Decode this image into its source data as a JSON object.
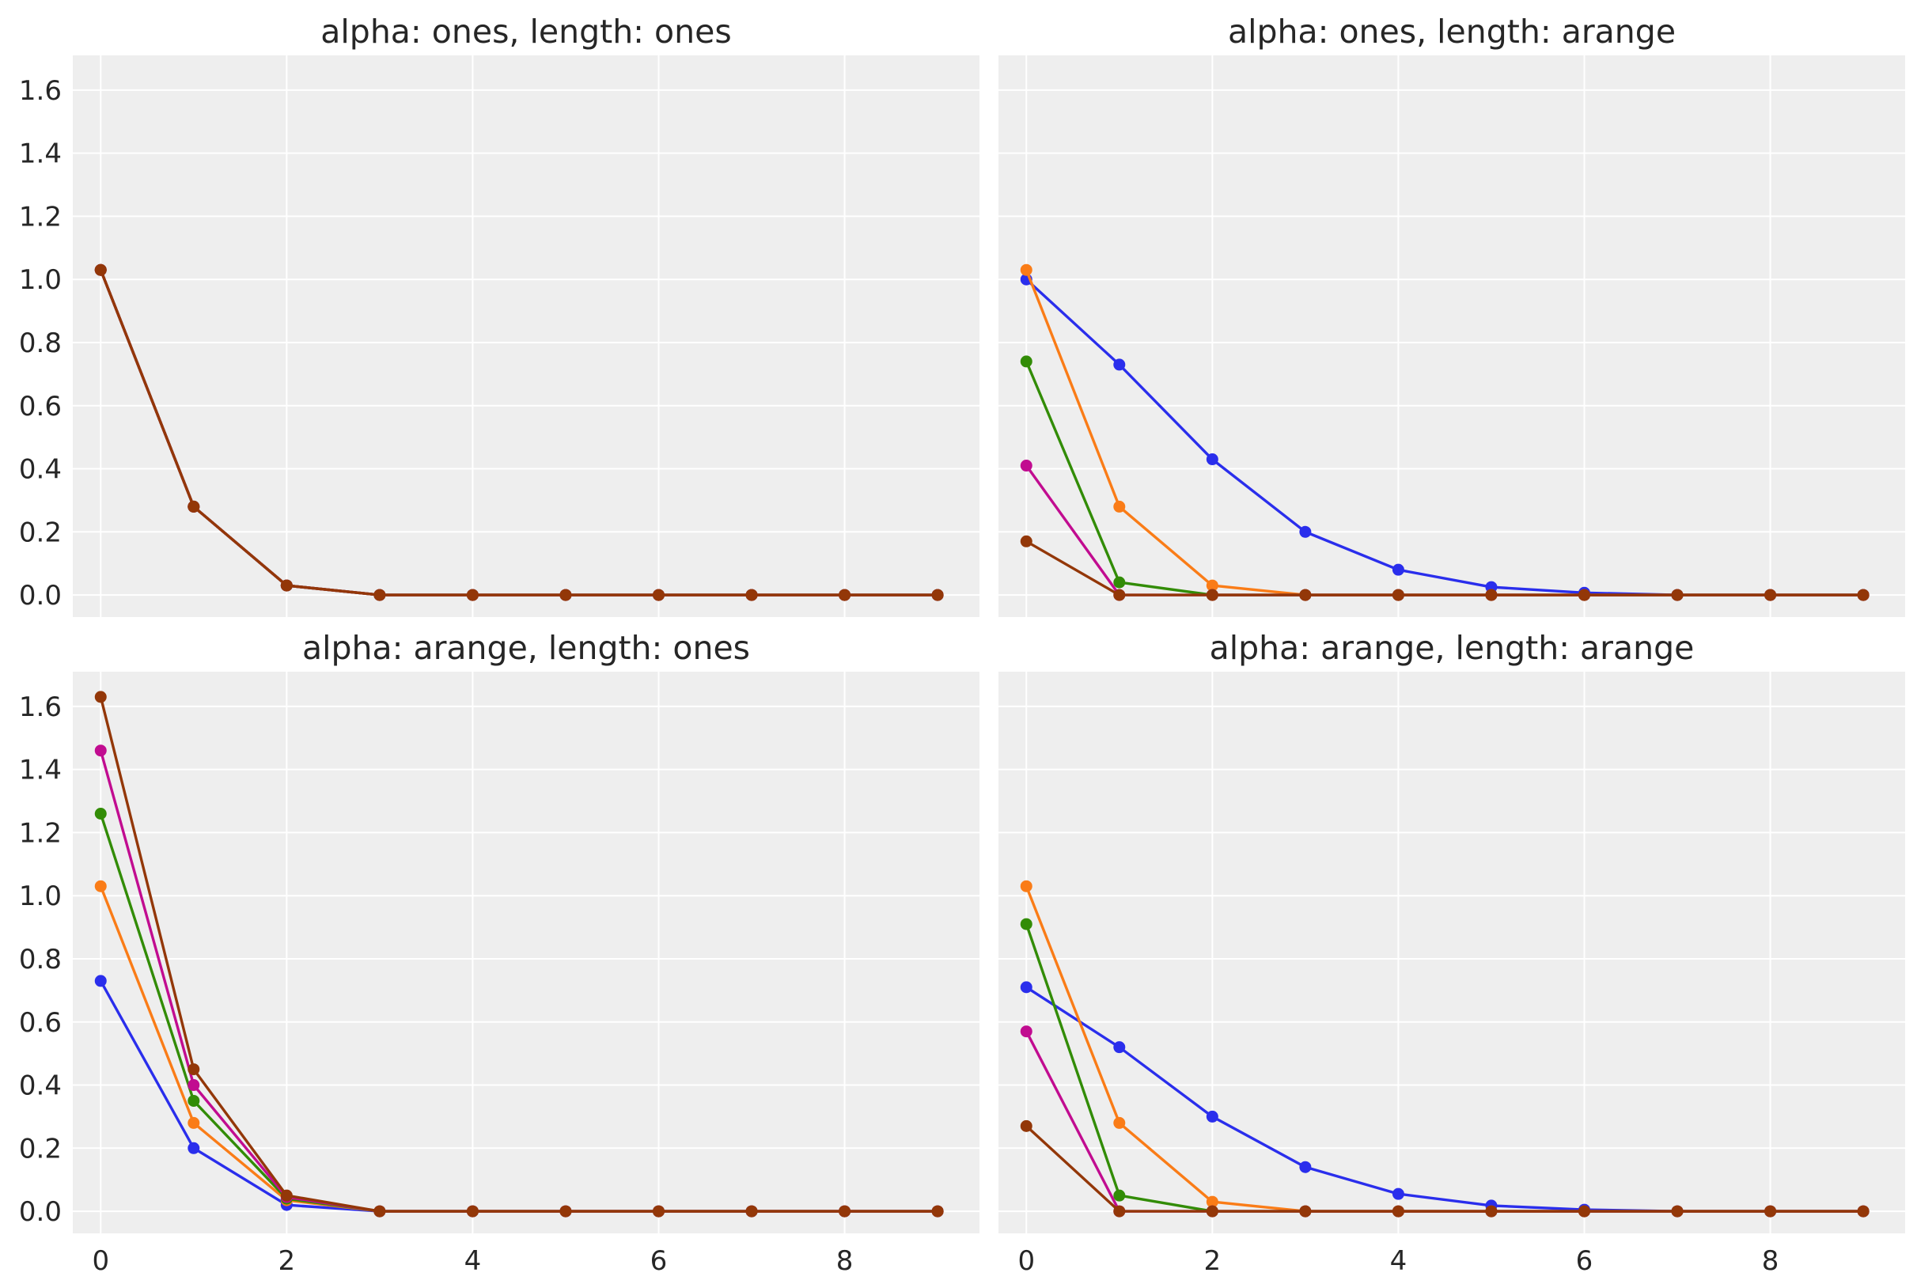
{
  "colors": {
    "background": "#eeeeee",
    "grid": "#ffffff",
    "text": "#262626",
    "series": [
      "#2a2eec",
      "#fa7c17",
      "#328c06",
      "#c10c90",
      "#933708"
    ]
  },
  "chart_data": [
    {
      "type": "line",
      "title": "alpha: ones, length: ones",
      "xlabel": "",
      "ylabel": "",
      "x": [
        0,
        1,
        2,
        3,
        4,
        5,
        6,
        7,
        8,
        9
      ],
      "xlim": [
        -0.3,
        9.45
      ],
      "ylim": [
        -0.07,
        1.71
      ],
      "x_ticks": [
        "0",
        "2",
        "4",
        "6",
        "8"
      ],
      "y_ticks": [
        "0.0",
        "0.2",
        "0.4",
        "0.6",
        "0.8",
        "1.0",
        "1.2",
        "1.4",
        "1.6"
      ],
      "grid": true,
      "marker": "circle",
      "series": [
        {
          "values": [
            1.03,
            0.28,
            0.03,
            0.0,
            0.0,
            0.0,
            0.0,
            0.0,
            0.0,
            0.0
          ]
        },
        {
          "values": [
            1.03,
            0.28,
            0.03,
            0.0,
            0.0,
            0.0,
            0.0,
            0.0,
            0.0,
            0.0
          ]
        },
        {
          "values": [
            1.03,
            0.28,
            0.03,
            0.0,
            0.0,
            0.0,
            0.0,
            0.0,
            0.0,
            0.0
          ]
        },
        {
          "values": [
            1.03,
            0.28,
            0.03,
            0.0,
            0.0,
            0.0,
            0.0,
            0.0,
            0.0,
            0.0
          ]
        },
        {
          "values": [
            1.03,
            0.28,
            0.03,
            0.0,
            0.0,
            0.0,
            0.0,
            0.0,
            0.0,
            0.0
          ]
        }
      ]
    },
    {
      "type": "line",
      "title": "alpha: ones, length: arange",
      "xlabel": "",
      "ylabel": "",
      "x": [
        0,
        1,
        2,
        3,
        4,
        5,
        6,
        7,
        8,
        9
      ],
      "xlim": [
        -0.3,
        9.45
      ],
      "ylim": [
        -0.07,
        1.71
      ],
      "x_ticks": [
        "0",
        "2",
        "4",
        "6",
        "8"
      ],
      "y_ticks": [
        "0.0",
        "0.2",
        "0.4",
        "0.6",
        "0.8",
        "1.0",
        "1.2",
        "1.4",
        "1.6"
      ],
      "grid": true,
      "marker": "circle",
      "series": [
        {
          "values": [
            1.0,
            0.73,
            0.43,
            0.2,
            0.08,
            0.025,
            0.007,
            0.0,
            0.0,
            0.0
          ]
        },
        {
          "values": [
            1.03,
            0.28,
            0.03,
            0.0,
            0.0,
            0.0,
            0.0,
            0.0,
            0.0,
            0.0
          ]
        },
        {
          "values": [
            0.74,
            0.04,
            0.0,
            0.0,
            0.0,
            0.0,
            0.0,
            0.0,
            0.0,
            0.0
          ]
        },
        {
          "values": [
            0.41,
            0.0,
            0.0,
            0.0,
            0.0,
            0.0,
            0.0,
            0.0,
            0.0,
            0.0
          ]
        },
        {
          "values": [
            0.17,
            0.0,
            0.0,
            0.0,
            0.0,
            0.0,
            0.0,
            0.0,
            0.0,
            0.0
          ]
        }
      ]
    },
    {
      "type": "line",
      "title": "alpha: arange, length: ones",
      "xlabel": "",
      "ylabel": "",
      "x": [
        0,
        1,
        2,
        3,
        4,
        5,
        6,
        7,
        8,
        9
      ],
      "xlim": [
        -0.3,
        9.45
      ],
      "ylim": [
        -0.07,
        1.71
      ],
      "x_ticks": [
        "0",
        "2",
        "4",
        "6",
        "8"
      ],
      "y_ticks": [
        "0.0",
        "0.2",
        "0.4",
        "0.6",
        "0.8",
        "1.0",
        "1.2",
        "1.4",
        "1.6"
      ],
      "grid": true,
      "marker": "circle",
      "series": [
        {
          "values": [
            0.73,
            0.2,
            0.02,
            0.0,
            0.0,
            0.0,
            0.0,
            0.0,
            0.0,
            0.0
          ]
        },
        {
          "values": [
            1.03,
            0.28,
            0.035,
            0.0,
            0.0,
            0.0,
            0.0,
            0.0,
            0.0,
            0.0
          ]
        },
        {
          "values": [
            1.26,
            0.35,
            0.04,
            0.0,
            0.0,
            0.0,
            0.0,
            0.0,
            0.0,
            0.0
          ]
        },
        {
          "values": [
            1.46,
            0.4,
            0.045,
            0.0,
            0.0,
            0.0,
            0.0,
            0.0,
            0.0,
            0.0
          ]
        },
        {
          "values": [
            1.63,
            0.45,
            0.05,
            0.0,
            0.0,
            0.0,
            0.0,
            0.0,
            0.0,
            0.0
          ]
        }
      ]
    },
    {
      "type": "line",
      "title": "alpha: arange, length: arange",
      "xlabel": "",
      "ylabel": "",
      "x": [
        0,
        1,
        2,
        3,
        4,
        5,
        6,
        7,
        8,
        9
      ],
      "xlim": [
        -0.3,
        9.45
      ],
      "ylim": [
        -0.07,
        1.71
      ],
      "x_ticks": [
        "0",
        "2",
        "4",
        "6",
        "8"
      ],
      "y_ticks": [
        "0.0",
        "0.2",
        "0.4",
        "0.6",
        "0.8",
        "1.0",
        "1.2",
        "1.4",
        "1.6"
      ],
      "grid": true,
      "marker": "circle",
      "series": [
        {
          "values": [
            0.71,
            0.52,
            0.3,
            0.14,
            0.055,
            0.018,
            0.005,
            0.0,
            0.0,
            0.0
          ]
        },
        {
          "values": [
            1.03,
            0.28,
            0.03,
            0.0,
            0.0,
            0.0,
            0.0,
            0.0,
            0.0,
            0.0
          ]
        },
        {
          "values": [
            0.91,
            0.05,
            0.0,
            0.0,
            0.0,
            0.0,
            0.0,
            0.0,
            0.0,
            0.0
          ]
        },
        {
          "values": [
            0.57,
            0.0,
            0.0,
            0.0,
            0.0,
            0.0,
            0.0,
            0.0,
            0.0,
            0.0
          ]
        },
        {
          "values": [
            0.27,
            0.0,
            0.0,
            0.0,
            0.0,
            0.0,
            0.0,
            0.0,
            0.0,
            0.0
          ]
        }
      ]
    }
  ]
}
